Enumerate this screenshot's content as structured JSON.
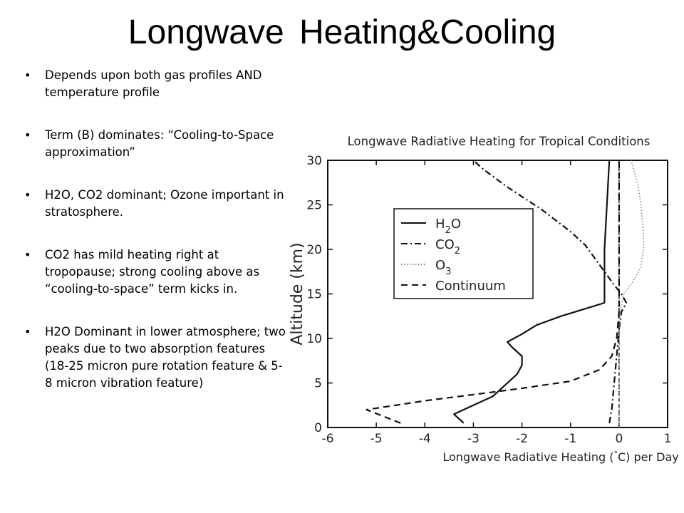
{
  "slide": {
    "title": "Longwave Heating&Cooling",
    "bullets": [
      "Depends upon both gas profiles AND temperature profile",
      "Term (B) dominates: “Cooling-to-Space approximation”",
      "H2O, CO2 dominant; Ozone important in stratosphere.",
      "CO2 has mild heating right at tropopause; strong cooling above as “cooling-to-space” term kicks in.",
      "H2O Dominant in lower atmosphere; two peaks due to two absorption features (18-25 micron pure rotation feature & 5-8 micron vibration feature)"
    ],
    "bullet_marker": "•"
  },
  "chart_data": {
    "type": "line",
    "title": "Longwave Radiative Heating for Tropical Conditions",
    "xlabel_parts": [
      "Longwave Radiative Heating (",
      "°",
      "C) per Day"
    ],
    "ylabel": "Altitude (km)",
    "xlim": [
      -6,
      1
    ],
    "ylim": [
      0,
      30
    ],
    "xticks": [
      -6,
      -5,
      -4,
      -3,
      -2,
      -1,
      0,
      1
    ],
    "yticks": [
      0,
      5,
      10,
      15,
      20,
      25,
      30
    ],
    "grid": false,
    "reference_line_x": 0,
    "legend_position": "upper-left",
    "series": [
      {
        "name": "H2O",
        "legend_main": "H",
        "legend_sub": "2",
        "legend_tail": "O",
        "style": "solid",
        "color": "#111111",
        "points": [
          [
            -3.2,
            0.5
          ],
          [
            -3.4,
            1.5
          ],
          [
            -3.0,
            2.5
          ],
          [
            -2.6,
            3.5
          ],
          [
            -2.4,
            4.5
          ],
          [
            -2.1,
            6.0
          ],
          [
            -2.0,
            7.0
          ],
          [
            -2.0,
            8.0
          ],
          [
            -2.2,
            9.0
          ],
          [
            -2.3,
            9.6
          ],
          [
            -2.0,
            10.5
          ],
          [
            -1.7,
            11.5
          ],
          [
            -1.2,
            12.5
          ],
          [
            -0.6,
            13.5
          ],
          [
            -0.3,
            14.0
          ],
          [
            -0.3,
            16.0
          ],
          [
            -0.3,
            20.0
          ],
          [
            -0.25,
            25.0
          ],
          [
            -0.2,
            30.0
          ]
        ]
      },
      {
        "name": "CO2",
        "legend_main": "CO",
        "legend_sub": "2",
        "legend_tail": "",
        "style": "dashdot",
        "color": "#111111",
        "points": [
          [
            -0.2,
            0.5
          ],
          [
            -0.15,
            2.0
          ],
          [
            -0.1,
            5.0
          ],
          [
            -0.05,
            8.0
          ],
          [
            0.0,
            11.0
          ],
          [
            0.05,
            13.0
          ],
          [
            0.15,
            14.0
          ],
          [
            0.05,
            15.0
          ],
          [
            -0.1,
            16.0
          ],
          [
            -0.3,
            17.5
          ],
          [
            -0.5,
            19.0
          ],
          [
            -0.7,
            20.5
          ],
          [
            -1.0,
            22.0
          ],
          [
            -1.6,
            24.5
          ],
          [
            -2.3,
            27.0
          ],
          [
            -2.8,
            29.0
          ],
          [
            -3.0,
            30.0
          ]
        ]
      },
      {
        "name": "O3",
        "legend_main": "O",
        "legend_sub": "3",
        "legend_tail": "",
        "style": "dotted",
        "color": "#888888",
        "points": [
          [
            0.0,
            0.0
          ],
          [
            0.0,
            10.0
          ],
          [
            0.02,
            13.0
          ],
          [
            0.1,
            15.0
          ],
          [
            0.3,
            16.5
          ],
          [
            0.45,
            18.0
          ],
          [
            0.5,
            20.0
          ],
          [
            0.5,
            22.0
          ],
          [
            0.45,
            25.0
          ],
          [
            0.4,
            27.0
          ],
          [
            0.3,
            29.0
          ],
          [
            0.25,
            30.0
          ]
        ]
      },
      {
        "name": "Continuum",
        "legend_main": "Continuum",
        "legend_sub": "",
        "legend_tail": "",
        "style": "dashed",
        "color": "#111111",
        "points": [
          [
            -4.5,
            0.5
          ],
          [
            -5.2,
            2.0
          ],
          [
            -4.0,
            3.0
          ],
          [
            -3.0,
            3.7
          ],
          [
            -2.0,
            4.4
          ],
          [
            -1.0,
            5.2
          ],
          [
            -0.4,
            6.5
          ],
          [
            -0.15,
            8.0
          ],
          [
            -0.05,
            10.0
          ],
          [
            0.0,
            13.0
          ],
          [
            0.0,
            20.0
          ],
          [
            0.0,
            30.0
          ]
        ]
      }
    ]
  }
}
